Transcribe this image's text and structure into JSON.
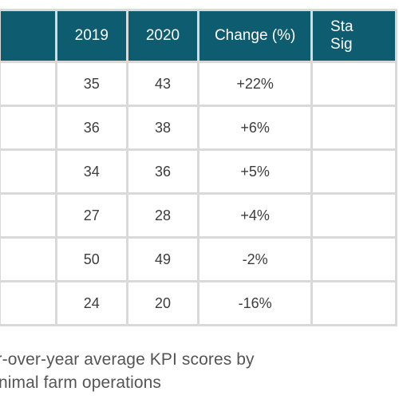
{
  "colors": {
    "header_bg": "#0e5c6f",
    "header_text": "#ffffff",
    "grid_line": "#d9d9d9",
    "cell_text": "#3d3d3d",
    "caption_text": "#555555"
  },
  "table": {
    "headers": {
      "label": "",
      "y2019": "2019",
      "y2020": "2020",
      "change": "Change (%)",
      "stat_line1": "Sta",
      "stat_line2": "Sig"
    },
    "rows": [
      {
        "label": "",
        "y2019": "35",
        "y2020": "43",
        "change": "+22%",
        "stat": ""
      },
      {
        "label": "",
        "y2019": "36",
        "y2020": "38",
        "change": "+6%",
        "stat": ""
      },
      {
        "label": "",
        "y2019": "34",
        "y2020": "36",
        "change": "+5%",
        "stat": ""
      },
      {
        "label": "",
        "y2019": "27",
        "y2020": "28",
        "change": "+4%",
        "stat": ""
      },
      {
        "label": "",
        "y2019": "50",
        "y2020": "49",
        "change": "-2%",
        "stat": ""
      },
      {
        "label": "",
        "y2019": "24",
        "y2020": "20",
        "change": "-16%",
        "stat": ""
      }
    ]
  },
  "caption": {
    "line1": "ear-over-year average KPI scores by",
    "line2": "- Animal farm operations"
  }
}
